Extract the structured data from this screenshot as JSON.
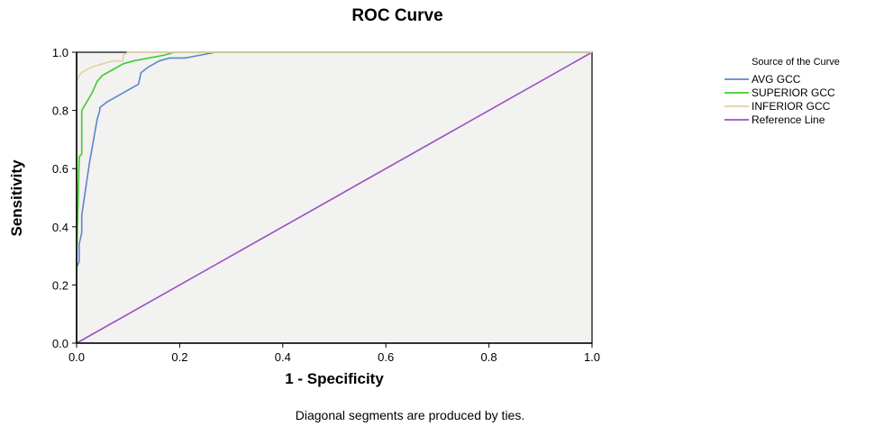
{
  "chart_data": {
    "type": "line",
    "title": "ROC Curve",
    "xlabel": "1 - Specificity",
    "ylabel": "Sensitivity",
    "xlim": [
      0,
      1
    ],
    "ylim": [
      0,
      1
    ],
    "x_ticks": [
      "0.0",
      "0.2",
      "0.4",
      "0.6",
      "0.8",
      "1.0"
    ],
    "y_ticks": [
      "0.0",
      "0.2",
      "0.4",
      "0.6",
      "0.8",
      "1.0"
    ],
    "grid": false,
    "legend_title": "Source of the Curve",
    "legend_position": "right",
    "footnote": "Diagonal segments are produced by ties.",
    "plot_background": "#f2f2f0",
    "series": [
      {
        "name": "AVG GCC",
        "color": "#5b86c9",
        "x": [
          0,
          0,
          0.005,
          0.005,
          0.01,
          0.01,
          0.015,
          0.02,
          0.025,
          0.03,
          0.035,
          0.04,
          0.045,
          0.045,
          0.06,
          0.08,
          0.1,
          0.12,
          0.125,
          0.14,
          0.16,
          0.18,
          0.21,
          0.24,
          0.27,
          0.3,
          1.0
        ],
        "y": [
          0,
          0.26,
          0.28,
          0.34,
          0.38,
          0.44,
          0.5,
          0.56,
          0.62,
          0.67,
          0.72,
          0.77,
          0.8,
          0.81,
          0.83,
          0.85,
          0.87,
          0.89,
          0.93,
          0.95,
          0.97,
          0.98,
          0.98,
          0.99,
          1.0,
          1.0,
          1.0
        ]
      },
      {
        "name": "SUPERIOR GCC",
        "color": "#3fcc2e",
        "x": [
          0,
          0,
          0.005,
          0.005,
          0.01,
          0.01,
          0.02,
          0.03,
          0.04,
          0.05,
          0.07,
          0.09,
          0.11,
          0.14,
          0.17,
          0.19,
          1.0
        ],
        "y": [
          0,
          0.29,
          0.63,
          0.64,
          0.65,
          0.8,
          0.83,
          0.86,
          0.9,
          0.92,
          0.94,
          0.96,
          0.97,
          0.98,
          0.99,
          1.0,
          1.0
        ]
      },
      {
        "name": "INFERIOR GCC",
        "color": "#e6cfa8",
        "x": [
          0,
          0,
          0.005,
          0.01,
          0.02,
          0.03,
          0.05,
          0.07,
          0.09,
          0.09,
          0.1,
          1.0
        ],
        "y": [
          0,
          0.9,
          0.92,
          0.93,
          0.94,
          0.95,
          0.96,
          0.97,
          0.97,
          0.99,
          1.0,
          1.0
        ]
      },
      {
        "name": "Reference Line",
        "color": "#9b4fc4",
        "x": [
          0,
          1
        ],
        "y": [
          0,
          1
        ]
      }
    ]
  }
}
